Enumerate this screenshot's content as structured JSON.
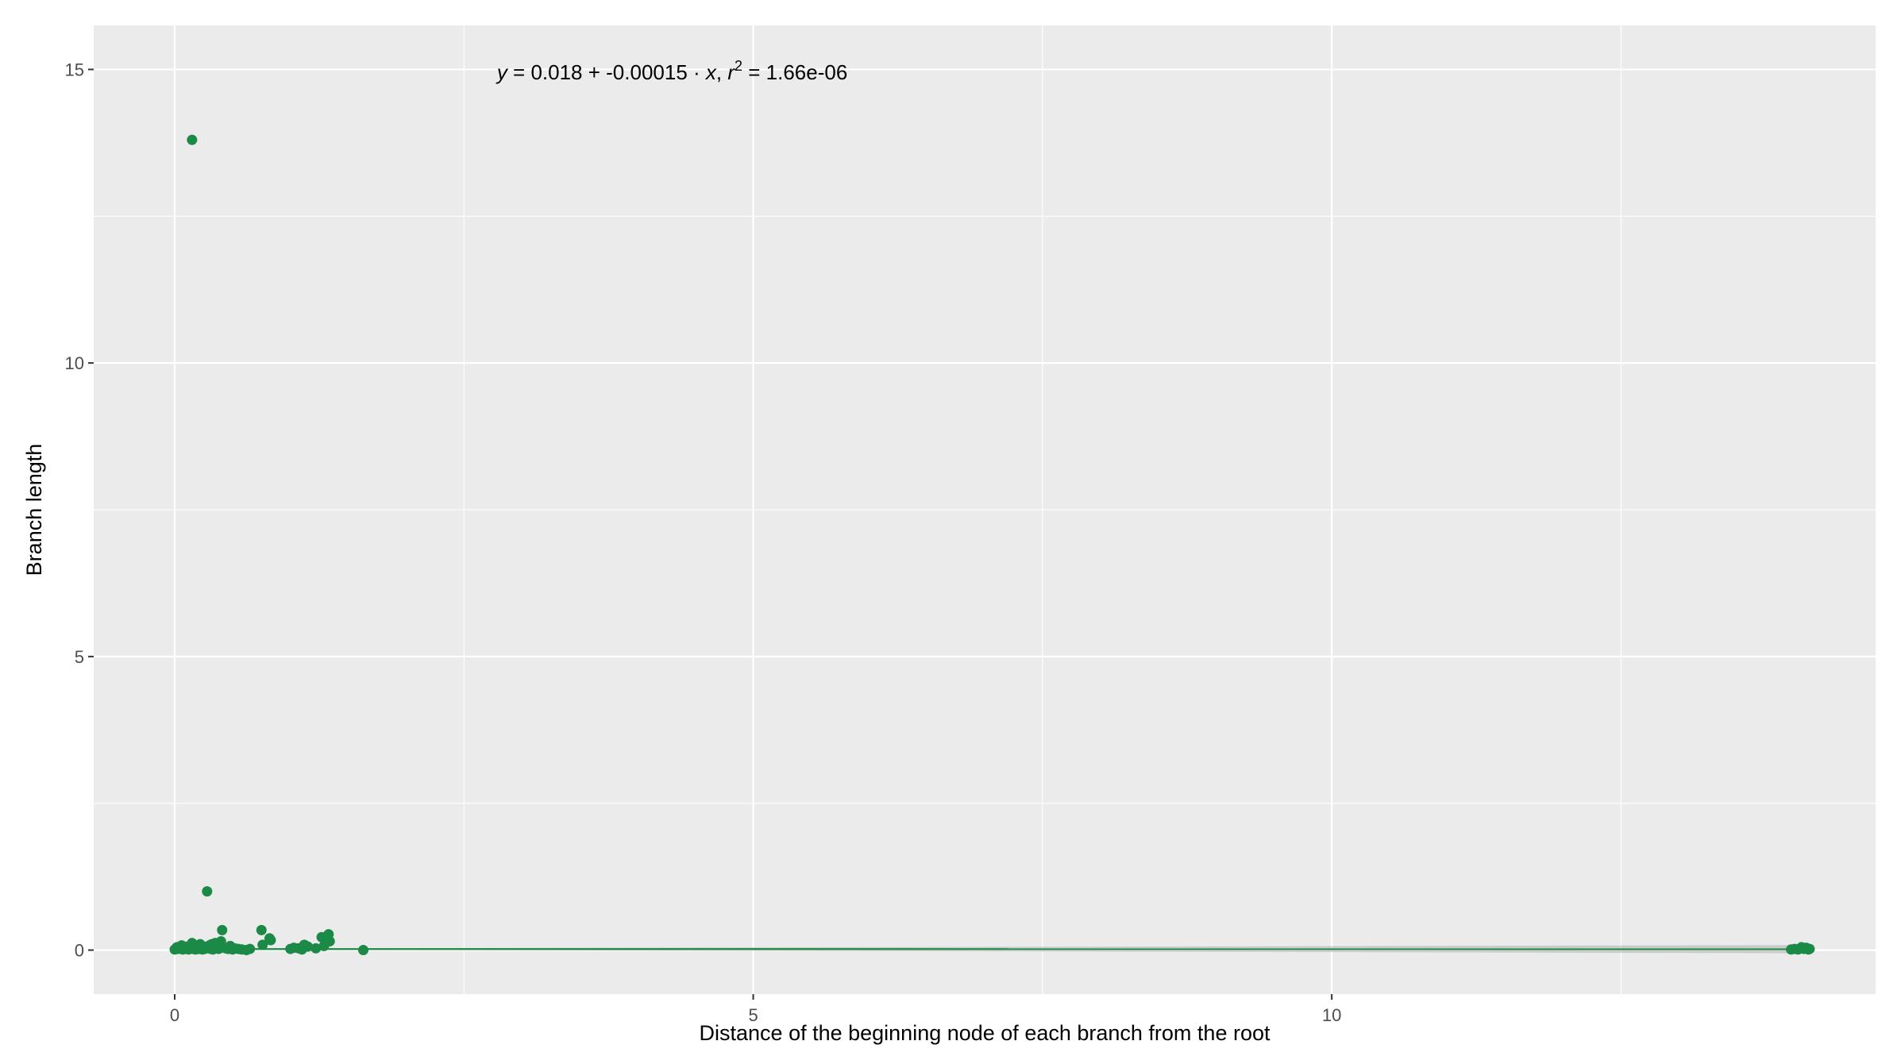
{
  "chart_data": {
    "type": "scatter",
    "xlabel": "Distance of the beginning node of each branch from the root",
    "ylabel": "Branch length",
    "xlim": [
      -0.7,
      14.7
    ],
    "ylim": [
      -0.75,
      15.75
    ],
    "x_ticks": [
      0,
      5,
      10
    ],
    "x_tick_labels": [
      "0",
      "5",
      "10"
    ],
    "y_ticks": [
      0,
      5,
      10,
      15
    ],
    "y_tick_labels": [
      "0",
      "5",
      "10",
      "15"
    ],
    "grid": true,
    "panel_background": "#ebebeb",
    "grid_color": "#ffffff",
    "point_color": "#1b8a47",
    "annotation": {
      "y_symbol": "y",
      "equation_rest": " = 0.018 + -0.00015 · ",
      "x_symbol": "x",
      "comma": ",  ",
      "r_symbol": "r",
      "r_exp": "2",
      "r2_text": " = 1.66e-06",
      "x": 4.3,
      "y": 14.95
    },
    "regression": {
      "intercept": 0.018,
      "slope": -0.00015,
      "r2": 1.66e-06,
      "x_range": [
        0,
        14.13
      ],
      "ci_halfwidth": [
        0.006,
        0.07
      ]
    },
    "points": [
      [
        0.0,
        0.01
      ],
      [
        0.02,
        0.05
      ],
      [
        0.03,
        0.02
      ],
      [
        0.05,
        0.03
      ],
      [
        0.06,
        0.08
      ],
      [
        0.07,
        0.01
      ],
      [
        0.08,
        0.04
      ],
      [
        0.1,
        0.02
      ],
      [
        0.11,
        0.06
      ],
      [
        0.12,
        0.01
      ],
      [
        0.14,
        0.03
      ],
      [
        0.15,
        13.8
      ],
      [
        0.15,
        0.12
      ],
      [
        0.16,
        0.02
      ],
      [
        0.17,
        0.05
      ],
      [
        0.18,
        0.01
      ],
      [
        0.19,
        0.07
      ],
      [
        0.2,
        0.03
      ],
      [
        0.21,
        0.02
      ],
      [
        0.22,
        0.1
      ],
      [
        0.23,
        0.04
      ],
      [
        0.24,
        0.01
      ],
      [
        0.25,
        0.06
      ],
      [
        0.26,
        0.02
      ],
      [
        0.27,
        0.03
      ],
      [
        0.28,
        1.0
      ],
      [
        0.29,
        0.05
      ],
      [
        0.3,
        0.08
      ],
      [
        0.31,
        0.02
      ],
      [
        0.32,
        0.1
      ],
      [
        0.33,
        0.01
      ],
      [
        0.34,
        0.04
      ],
      [
        0.35,
        0.12
      ],
      [
        0.36,
        0.03
      ],
      [
        0.37,
        0.06
      ],
      [
        0.38,
        0.02
      ],
      [
        0.39,
        0.09
      ],
      [
        0.4,
        0.15
      ],
      [
        0.41,
        0.34
      ],
      [
        0.42,
        0.05
      ],
      [
        0.44,
        0.03
      ],
      [
        0.46,
        0.02
      ],
      [
        0.48,
        0.07
      ],
      [
        0.5,
        0.01
      ],
      [
        0.52,
        0.03
      ],
      [
        0.55,
        0.02
      ],
      [
        0.58,
        0.01
      ],
      [
        0.62,
        0.0
      ],
      [
        0.65,
        0.02
      ],
      [
        0.75,
        0.34
      ],
      [
        0.76,
        0.09
      ],
      [
        0.82,
        0.2
      ],
      [
        0.83,
        0.17
      ],
      [
        1.0,
        0.02
      ],
      [
        1.03,
        0.04
      ],
      [
        1.07,
        0.03
      ],
      [
        1.1,
        0.01
      ],
      [
        1.12,
        0.09
      ],
      [
        1.15,
        0.06
      ],
      [
        1.22,
        0.03
      ],
      [
        1.27,
        0.22
      ],
      [
        1.29,
        0.07
      ],
      [
        1.33,
        0.27
      ],
      [
        1.34,
        0.15
      ],
      [
        1.63,
        0.0
      ],
      [
        13.97,
        0.01
      ],
      [
        14.0,
        0.02
      ],
      [
        14.03,
        0.01
      ],
      [
        14.05,
        0.03
      ],
      [
        14.06,
        0.05
      ],
      [
        14.08,
        0.02
      ],
      [
        14.1,
        0.04
      ],
      [
        14.12,
        0.01
      ],
      [
        14.13,
        0.02
      ]
    ]
  }
}
